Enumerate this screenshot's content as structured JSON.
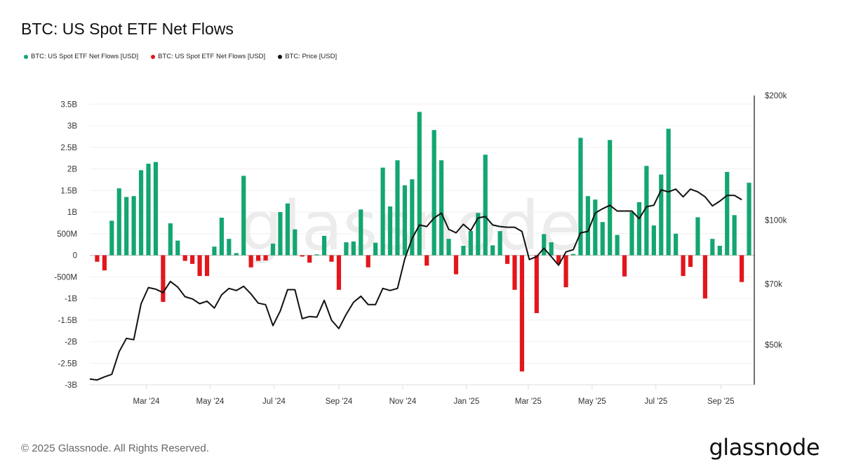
{
  "title": "BTC: US Spot ETF Net Flows",
  "legend": [
    {
      "label": "BTC: US Spot ETF Net Flows [USD]",
      "color": "#13a670"
    },
    {
      "label": "BTC: US Spot ETF Net Flows [USD]",
      "color": "#e3161b"
    },
    {
      "label": "BTC: Price [USD]",
      "color": "#111111"
    }
  ],
  "footer": "© 2025 Glassnode. All Rights Reserved.",
  "logo": "glassnode",
  "watermark": "glassnode",
  "chart_data": {
    "type": "bar",
    "title": "BTC: US Spot ETF Net Flows",
    "grid": true,
    "legend_position": "top-left",
    "x_ticks": [
      {
        "date": "2024-03-01",
        "label": "Mar '24"
      },
      {
        "date": "2024-05-01",
        "label": "May '24"
      },
      {
        "date": "2024-07-01",
        "label": "Jul '24"
      },
      {
        "date": "2024-09-01",
        "label": "Sep '24"
      },
      {
        "date": "2024-11-01",
        "label": "Nov '24"
      },
      {
        "date": "2025-01-01",
        "label": "Jan '25"
      },
      {
        "date": "2025-03-01",
        "label": "Mar '25"
      },
      {
        "date": "2025-05-01",
        "label": "May '25"
      },
      {
        "date": "2025-07-01",
        "label": "Jul '25"
      },
      {
        "date": "2025-09-01",
        "label": "Sep '25"
      }
    ],
    "xlim": [
      "2024-01-07",
      "2025-10-03"
    ],
    "y_left": {
      "ylim": [
        -3000000000,
        3700000000
      ],
      "ticks": [
        {
          "value": 3500000000,
          "label": "3.5B"
        },
        {
          "value": 3000000000,
          "label": "3B"
        },
        {
          "value": 2500000000,
          "label": "2.5B"
        },
        {
          "value": 2000000000,
          "label": "2B"
        },
        {
          "value": 1500000000,
          "label": "1.5B"
        },
        {
          "value": 1000000000,
          "label": "1B"
        },
        {
          "value": 500000000,
          "label": "500M"
        },
        {
          "value": 0,
          "label": "0"
        },
        {
          "value": -500000000,
          "label": "-500M"
        },
        {
          "value": -1000000000,
          "label": "-1B"
        },
        {
          "value": -1500000000,
          "label": "-1.5B"
        },
        {
          "value": -2000000000,
          "label": "-2B"
        },
        {
          "value": -2500000000,
          "label": "-2.5B"
        },
        {
          "value": -3000000000,
          "label": "-3B"
        }
      ]
    },
    "y_right": {
      "scale": "log",
      "ylim": [
        40000,
        200000
      ],
      "ticks": [
        {
          "value": 200000,
          "label": "$200k"
        },
        {
          "value": 100000,
          "label": "$100k"
        },
        {
          "value": 70000,
          "label": "$70k"
        },
        {
          "value": 50000,
          "label": "$50k"
        }
      ]
    },
    "flows": {
      "positive_color": "#13a670",
      "negative_color": "#e3161b",
      "dates": [
        "2024-01-14",
        "2024-01-21",
        "2024-01-28",
        "2024-02-04",
        "2024-02-11",
        "2024-02-18",
        "2024-02-25",
        "2024-03-03",
        "2024-03-10",
        "2024-03-17",
        "2024-03-24",
        "2024-03-31",
        "2024-04-07",
        "2024-04-14",
        "2024-04-21",
        "2024-04-28",
        "2024-05-05",
        "2024-05-12",
        "2024-05-19",
        "2024-05-26",
        "2024-06-02",
        "2024-06-09",
        "2024-06-16",
        "2024-06-23",
        "2024-06-30",
        "2024-07-07",
        "2024-07-14",
        "2024-07-21",
        "2024-07-28",
        "2024-08-04",
        "2024-08-11",
        "2024-08-18",
        "2024-08-25",
        "2024-09-01",
        "2024-09-08",
        "2024-09-15",
        "2024-09-22",
        "2024-09-29",
        "2024-10-06",
        "2024-10-13",
        "2024-10-20",
        "2024-10-27",
        "2024-11-03",
        "2024-11-10",
        "2024-11-17",
        "2024-11-24",
        "2024-12-01",
        "2024-12-08",
        "2024-12-15",
        "2024-12-22",
        "2024-12-29",
        "2025-01-05",
        "2025-01-12",
        "2025-01-19",
        "2025-01-26",
        "2025-02-02",
        "2025-02-09",
        "2025-02-16",
        "2025-02-23",
        "2025-03-02",
        "2025-03-09",
        "2025-03-16",
        "2025-03-23",
        "2025-03-30",
        "2025-04-06",
        "2025-04-13",
        "2025-04-20",
        "2025-04-27",
        "2025-05-04",
        "2025-05-11",
        "2025-05-18",
        "2025-05-25",
        "2025-06-01",
        "2025-06-08",
        "2025-06-15",
        "2025-06-22",
        "2025-06-29",
        "2025-07-06",
        "2025-07-13",
        "2025-07-20",
        "2025-07-27",
        "2025-08-03",
        "2025-08-10",
        "2025-08-17",
        "2025-08-24",
        "2025-08-31",
        "2025-09-07",
        "2025-09-14",
        "2025-09-21",
        "2025-09-28"
      ],
      "values": [
        -150000000,
        -350000000,
        800000000,
        1550000000,
        1350000000,
        1370000000,
        1970000000,
        2120000000,
        2160000000,
        -1080000000,
        740000000,
        340000000,
        -130000000,
        -200000000,
        -480000000,
        -480000000,
        200000000,
        870000000,
        380000000,
        50000000,
        1840000000,
        -280000000,
        -130000000,
        -120000000,
        270000000,
        1000000000,
        1200000000,
        600000000,
        -30000000,
        -170000000,
        20000000,
        450000000,
        -150000000,
        -800000000,
        300000000,
        320000000,
        1060000000,
        -280000000,
        290000000,
        2030000000,
        1130000000,
        2200000000,
        1620000000,
        1760000000,
        3320000000,
        -240000000,
        2900000000,
        2200000000,
        380000000,
        -440000000,
        220000000,
        560000000,
        980000000,
        2330000000,
        230000000,
        560000000,
        -200000000,
        -800000000,
        -2690000000,
        0,
        -1340000000,
        490000000,
        300000000,
        -200000000,
        -740000000,
        30000000,
        2720000000,
        1370000000,
        1290000000,
        770000000,
        2670000000,
        470000000,
        -490000000,
        1000000000,
        1230000000,
        2070000000,
        690000000,
        1870000000,
        2930000000,
        500000000,
        -480000000,
        -270000000,
        880000000,
        -1000000000,
        380000000,
        220000000,
        1930000000,
        930000000,
        -620000000,
        1680000000
      ]
    },
    "price": {
      "color": "#111111",
      "dates": [
        "2024-01-07",
        "2024-01-14",
        "2024-01-21",
        "2024-01-28",
        "2024-02-04",
        "2024-02-11",
        "2024-02-18",
        "2024-02-25",
        "2024-03-03",
        "2024-03-10",
        "2024-03-17",
        "2024-03-24",
        "2024-03-31",
        "2024-04-07",
        "2024-04-14",
        "2024-04-21",
        "2024-04-28",
        "2024-05-05",
        "2024-05-12",
        "2024-05-19",
        "2024-05-26",
        "2024-06-02",
        "2024-06-09",
        "2024-06-16",
        "2024-06-23",
        "2024-06-30",
        "2024-07-07",
        "2024-07-14",
        "2024-07-21",
        "2024-07-28",
        "2024-08-04",
        "2024-08-11",
        "2024-08-18",
        "2024-08-25",
        "2024-09-01",
        "2024-09-08",
        "2024-09-15",
        "2024-09-22",
        "2024-09-29",
        "2024-10-06",
        "2024-10-13",
        "2024-10-20",
        "2024-10-27",
        "2024-11-03",
        "2024-11-10",
        "2024-11-17",
        "2024-11-24",
        "2024-12-01",
        "2024-12-08",
        "2024-12-15",
        "2024-12-22",
        "2024-12-29",
        "2025-01-05",
        "2025-01-12",
        "2025-01-19",
        "2025-01-26",
        "2025-02-02",
        "2025-02-09",
        "2025-02-16",
        "2025-02-23",
        "2025-03-02",
        "2025-03-09",
        "2025-03-16",
        "2025-03-23",
        "2025-03-30",
        "2025-04-06",
        "2025-04-13",
        "2025-04-20",
        "2025-04-27",
        "2025-05-04",
        "2025-05-11",
        "2025-05-18",
        "2025-05-25",
        "2025-06-01",
        "2025-06-08",
        "2025-06-15",
        "2025-06-22",
        "2025-06-29",
        "2025-07-06",
        "2025-07-13",
        "2025-07-20",
        "2025-07-27",
        "2025-08-03",
        "2025-08-10",
        "2025-08-17",
        "2025-08-24",
        "2025-08-31",
        "2025-09-07",
        "2025-09-14",
        "2025-09-21"
      ],
      "values": [
        41300,
        41100,
        41800,
        42400,
        48100,
        51800,
        51400,
        62800,
        68700,
        68100,
        66800,
        71100,
        68900,
        65300,
        64500,
        62800,
        63700,
        61300,
        66000,
        68400,
        67600,
        69200,
        66300,
        63000,
        62500,
        55600,
        60300,
        67900,
        67900,
        57800,
        58500,
        58300,
        64000,
        57300,
        54700,
        59200,
        63300,
        65500,
        62500,
        62500,
        68400,
        67600,
        68400,
        80600,
        90300,
        97300,
        96500,
        101200,
        104000,
        95000,
        93200,
        97700,
        94300,
        101200,
        102000,
        97300,
        96500,
        96100,
        96100,
        93900,
        80300,
        81600,
        85500,
        81600,
        77800,
        83800,
        84800,
        93200,
        93900,
        104000,
        106500,
        108600,
        105200,
        105200,
        105200,
        100800,
        107700,
        108600,
        118300,
        117000,
        118800,
        113800,
        118800,
        117000,
        113800,
        108200,
        111100,
        114700,
        114700,
        112000
      ]
    }
  }
}
